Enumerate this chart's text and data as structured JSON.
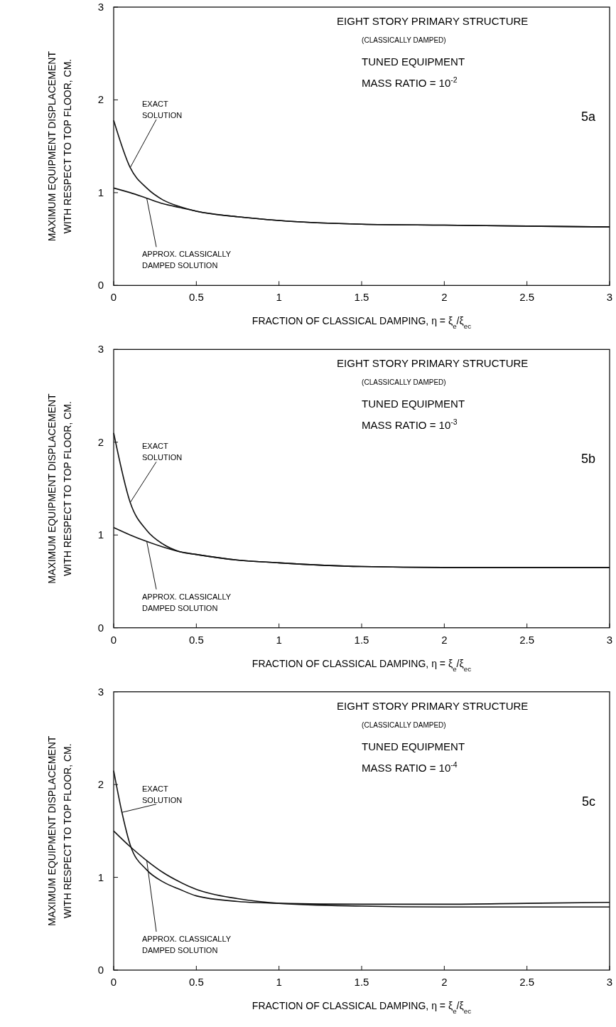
{
  "chart_data": [
    {
      "type": "line",
      "xlabel": "FRACTION OF CLASSICAL DAMPING, η = ξ$_{e}$/ξ$_{ec}$",
      "ylabel": "MAXIMUM EQUIPMENT DISPLACEMENT WITH RESPECT TO TOP FLOOR, CM.",
      "xlim": [
        0,
        3
      ],
      "ylim": [
        0,
        3
      ],
      "xticks": [
        0,
        0.5,
        1,
        1.5,
        2,
        2.5,
        3
      ],
      "yticks": [
        0,
        1,
        2,
        3
      ],
      "grid": false,
      "line_style": "solid",
      "annotations": [
        "EIGHT STORY PRIMARY STRUCTURE",
        "(CLASSICALLY DAMPED)",
        "TUNED EQUIPMENT",
        "MASS RATIO = 10$^{-2}$",
        "5a"
      ],
      "series": [
        {
          "name": "EXACT SOLUTION",
          "color": "#111111",
          "x": [
            0,
            0.1,
            0.2,
            0.3,
            0.4,
            0.5,
            0.75,
            1,
            1.5,
            2,
            2.5,
            3
          ],
          "values": [
            1.78,
            1.27,
            1.05,
            0.92,
            0.85,
            0.8,
            0.74,
            0.7,
            0.66,
            0.65,
            0.64,
            0.63
          ]
        },
        {
          "name": "APPROX. CLASSICALLY DAMPED SOLUTION",
          "color": "#111111",
          "x": [
            0,
            0.1,
            0.2,
            0.3,
            0.4,
            0.5,
            0.75,
            1,
            1.5,
            2,
            2.5,
            3
          ],
          "values": [
            1.05,
            1.0,
            0.94,
            0.88,
            0.84,
            0.8,
            0.74,
            0.7,
            0.66,
            0.65,
            0.64,
            0.63
          ]
        }
      ]
    },
    {
      "type": "line",
      "xlabel": "FRACTION OF CLASSICAL DAMPING, η = ξ$_{e}$/ξ$_{ec}$",
      "ylabel": "MAXIMUM EQUIPMENT DISPLACEMENT WITH RESPECT TO TOP FLOOR, CM.",
      "xlim": [
        0,
        3
      ],
      "ylim": [
        0,
        3
      ],
      "xticks": [
        0,
        0.5,
        1,
        1.5,
        2,
        2.5,
        3
      ],
      "yticks": [
        0,
        1,
        2,
        3
      ],
      "grid": false,
      "line_style": "solid",
      "annotations": [
        "EIGHT STORY PRIMARY STRUCTURE",
        "(CLASSICALLY DAMPED)",
        "TUNED EQUIPMENT",
        "MASS RATIO = 10$^{-3}$",
        "5b"
      ],
      "series": [
        {
          "name": "EXACT SOLUTION",
          "color": "#111111",
          "x": [
            0,
            0.1,
            0.2,
            0.3,
            0.4,
            0.5,
            0.75,
            1,
            1.5,
            2,
            2.5,
            3
          ],
          "values": [
            2.1,
            1.35,
            1.05,
            0.9,
            0.82,
            0.79,
            0.73,
            0.7,
            0.66,
            0.65,
            0.65,
            0.65
          ]
        },
        {
          "name": "APPROX. CLASSICALLY DAMPED SOLUTION",
          "color": "#111111",
          "x": [
            0,
            0.1,
            0.2,
            0.3,
            0.4,
            0.5,
            0.75,
            1,
            1.5,
            2,
            2.5,
            3
          ],
          "values": [
            1.08,
            1.0,
            0.93,
            0.87,
            0.82,
            0.79,
            0.73,
            0.7,
            0.66,
            0.65,
            0.65,
            0.65
          ]
        }
      ]
    },
    {
      "type": "line",
      "xlabel": "FRACTION OF CLASSICAL DAMPING, η = ξ$_{e}$/ξ$_{ec}$",
      "ylabel": "MAXIMUM EQUIPMENT DISPLACEMENT WITH RESPECT TO TOP FLOOR, CM.",
      "xlim": [
        0,
        3
      ],
      "ylim": [
        0,
        3
      ],
      "xticks": [
        0,
        0.5,
        1,
        1.5,
        2,
        2.5,
        3
      ],
      "yticks": [
        0,
        1,
        2,
        3
      ],
      "grid": false,
      "line_style": "solid",
      "annotations": [
        "EIGHT STORY PRIMARY STRUCTURE",
        "(CLASSICALLY DAMPED)",
        "TUNED EQUIPMENT",
        "MASS RATIO = 10$^{-4}$",
        "5c"
      ],
      "series": [
        {
          "name": "EXACT SOLUTION",
          "color": "#111111",
          "x": [
            0,
            0.05,
            0.1,
            0.2,
            0.3,
            0.4,
            0.5,
            0.75,
            1,
            1.5,
            2,
            2.5,
            3
          ],
          "values": [
            2.15,
            1.7,
            1.35,
            1.08,
            0.95,
            0.87,
            0.8,
            0.74,
            0.72,
            0.71,
            0.71,
            0.72,
            0.73
          ]
        },
        {
          "name": "APPROX. CLASSICALLY DAMPED SOLUTION",
          "color": "#111111",
          "x": [
            0,
            0.1,
            0.2,
            0.3,
            0.4,
            0.5,
            0.75,
            1,
            1.5,
            2,
            2.5,
            3
          ],
          "values": [
            1.5,
            1.33,
            1.18,
            1.05,
            0.95,
            0.87,
            0.77,
            0.72,
            0.69,
            0.68,
            0.68,
            0.68
          ]
        }
      ]
    }
  ]
}
